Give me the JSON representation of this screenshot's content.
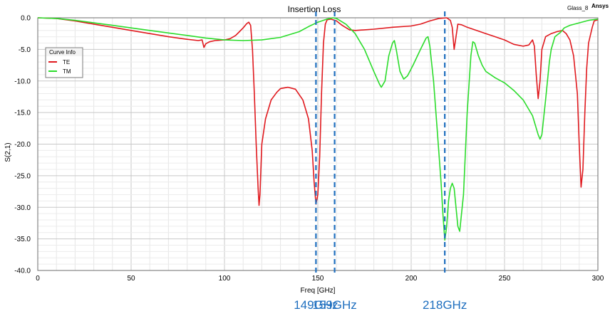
{
  "chart_data": {
    "type": "line",
    "title": "Insertion Loss",
    "xlabel": "Freq [GHz]",
    "ylabel": "S(2,1)",
    "xlim": [
      0,
      300
    ],
    "ylim": [
      -40,
      0
    ],
    "xticks": [
      "0",
      "50",
      "100",
      "150",
      "200",
      "250",
      "300"
    ],
    "yticks": [
      "0.0",
      "-5.0",
      "-10.0",
      "-15.0",
      "-20.0",
      "-25.0",
      "-30.0",
      "-35.0",
      "-40.0"
    ],
    "grid": true,
    "legend": {
      "title": "Curve Info",
      "placement": "top-left"
    },
    "project": "Glass_8",
    "brand": "Ansys",
    "series": [
      {
        "name": "TE",
        "color": "#e0191e",
        "points": [
          [
            0,
            0
          ],
          [
            10,
            -0.1
          ],
          [
            20,
            -0.5
          ],
          [
            30,
            -1.0
          ],
          [
            40,
            -1.5
          ],
          [
            50,
            -2.0
          ],
          [
            60,
            -2.5
          ],
          [
            70,
            -3.0
          ],
          [
            80,
            -3.4
          ],
          [
            86,
            -3.6
          ],
          [
            88,
            -3.5
          ],
          [
            89,
            -4.7
          ],
          [
            90,
            -4.1
          ],
          [
            92,
            -3.8
          ],
          [
            95,
            -3.6
          ],
          [
            100,
            -3.5
          ],
          [
            103,
            -3.3
          ],
          [
            106,
            -2.8
          ],
          [
            108,
            -2.2
          ],
          [
            110,
            -1.6
          ],
          [
            112,
            -0.9
          ],
          [
            113,
            -0.7
          ],
          [
            114,
            -1.2
          ],
          [
            115,
            -5.0
          ],
          [
            116,
            -12.0
          ],
          [
            117,
            -20.0
          ],
          [
            118,
            -27.0
          ],
          [
            118.5,
            -29.7
          ],
          [
            119,
            -28.0
          ],
          [
            120,
            -20.0
          ],
          [
            122,
            -16.0
          ],
          [
            125,
            -13.0
          ],
          [
            128,
            -11.8
          ],
          [
            130,
            -11.2
          ],
          [
            134,
            -11.0
          ],
          [
            138,
            -11.3
          ],
          [
            142,
            -13.0
          ],
          [
            145,
            -16.0
          ],
          [
            147,
            -21.0
          ],
          [
            148,
            -26.0
          ],
          [
            149,
            -29.5
          ],
          [
            150,
            -28.0
          ],
          [
            151,
            -22.0
          ],
          [
            152,
            -12.0
          ],
          [
            153,
            -4.0
          ],
          [
            154,
            -1.0
          ],
          [
            155,
            -0.3
          ],
          [
            157,
            -0.2
          ],
          [
            160,
            -0.5
          ],
          [
            163,
            -1.2
          ],
          [
            167,
            -1.9
          ],
          [
            170,
            -2.0
          ],
          [
            180,
            -1.8
          ],
          [
            190,
            -1.5
          ],
          [
            200,
            -1.3
          ],
          [
            205,
            -1.0
          ],
          [
            210,
            -0.5
          ],
          [
            215,
            -0.1
          ],
          [
            219,
            0
          ],
          [
            221,
            -0.4
          ],
          [
            222,
            -1.5
          ],
          [
            223,
            -5.0
          ],
          [
            224,
            -3.0
          ],
          [
            225,
            -1.0
          ],
          [
            227,
            -1.1
          ],
          [
            230,
            -1.5
          ],
          [
            235,
            -2.0
          ],
          [
            240,
            -2.5
          ],
          [
            245,
            -3.0
          ],
          [
            250,
            -3.5
          ],
          [
            255,
            -4.2
          ],
          [
            260,
            -4.5
          ],
          [
            263,
            -4.3
          ],
          [
            265,
            -3.5
          ],
          [
            266,
            -4.5
          ],
          [
            267,
            -9.0
          ],
          [
            268,
            -12.8
          ],
          [
            269,
            -10.0
          ],
          [
            270,
            -5.0
          ],
          [
            272,
            -3.0
          ],
          [
            275,
            -2.5
          ],
          [
            278,
            -2.2
          ],
          [
            281,
            -2.0
          ],
          [
            283,
            -2.5
          ],
          [
            285,
            -3.5
          ],
          [
            287,
            -6.0
          ],
          [
            289,
            -12.0
          ],
          [
            290,
            -20.0
          ],
          [
            291,
            -26.8
          ],
          [
            292,
            -24.0
          ],
          [
            293,
            -15.0
          ],
          [
            294,
            -8.0
          ],
          [
            295,
            -4.0
          ],
          [
            297,
            -1.5
          ],
          [
            298,
            -0.5
          ],
          [
            300,
            -0.3
          ]
        ]
      },
      {
        "name": "TM",
        "color": "#2bdc2b",
        "points": [
          [
            0,
            0
          ],
          [
            10,
            -0.1
          ],
          [
            20,
            -0.4
          ],
          [
            30,
            -0.8
          ],
          [
            40,
            -1.2
          ],
          [
            50,
            -1.6
          ],
          [
            60,
            -2.0
          ],
          [
            70,
            -2.4
          ],
          [
            80,
            -2.8
          ],
          [
            90,
            -3.2
          ],
          [
            100,
            -3.5
          ],
          [
            110,
            -3.6
          ],
          [
            120,
            -3.5
          ],
          [
            130,
            -3.1
          ],
          [
            140,
            -2.2
          ],
          [
            145,
            -1.4
          ],
          [
            150,
            -0.7
          ],
          [
            155,
            -0.2
          ],
          [
            158,
            0
          ],
          [
            160,
            -0.1
          ],
          [
            165,
            -1.0
          ],
          [
            170,
            -2.5
          ],
          [
            175,
            -5.0
          ],
          [
            180,
            -8.5
          ],
          [
            183,
            -10.5
          ],
          [
            184,
            -11.0
          ],
          [
            186,
            -10.0
          ],
          [
            188,
            -6.0
          ],
          [
            190,
            -4.0
          ],
          [
            191,
            -3.6
          ],
          [
            192,
            -5.0
          ],
          [
            194,
            -8.5
          ],
          [
            196,
            -9.7
          ],
          [
            198,
            -9.2
          ],
          [
            201,
            -7.5
          ],
          [
            205,
            -5.0
          ],
          [
            208,
            -3.2
          ],
          [
            209,
            -3.0
          ],
          [
            210,
            -4.5
          ],
          [
            212,
            -10.0
          ],
          [
            214,
            -18.0
          ],
          [
            216,
            -26.0
          ],
          [
            217,
            -31.0
          ],
          [
            218,
            -35.2
          ],
          [
            219,
            -33.0
          ],
          [
            220,
            -29.0
          ],
          [
            221,
            -27.0
          ],
          [
            222,
            -26.2
          ],
          [
            223,
            -27.0
          ],
          [
            224,
            -30.0
          ],
          [
            225,
            -33.0
          ],
          [
            226,
            -33.8
          ],
          [
            228,
            -28.0
          ],
          [
            230,
            -15.0
          ],
          [
            232,
            -6.0
          ],
          [
            233,
            -3.8
          ],
          [
            234,
            -4.0
          ],
          [
            236,
            -6.0
          ],
          [
            238,
            -7.5
          ],
          [
            240,
            -8.5
          ],
          [
            245,
            -9.5
          ],
          [
            250,
            -10.3
          ],
          [
            255,
            -11.5
          ],
          [
            260,
            -13.0
          ],
          [
            265,
            -15.5
          ],
          [
            268,
            -18.5
          ],
          [
            269,
            -19.2
          ],
          [
            270,
            -18.5
          ],
          [
            272,
            -13.0
          ],
          [
            274,
            -7.0
          ],
          [
            275,
            -5.0
          ],
          [
            277,
            -3.0
          ],
          [
            280,
            -2.3
          ],
          [
            282,
            -1.6
          ],
          [
            285,
            -1.2
          ],
          [
            290,
            -0.8
          ],
          [
            295,
            -0.4
          ],
          [
            300,
            -0.2
          ]
        ]
      }
    ],
    "markers": [
      {
        "x": 149,
        "label": "149GHz"
      },
      {
        "x": 159,
        "label": "159GHz"
      },
      {
        "x": 218,
        "label": "218GHz"
      }
    ],
    "marker_color": "#1f6fbf"
  }
}
